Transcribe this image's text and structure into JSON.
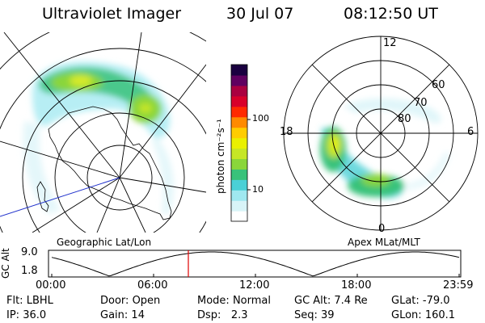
{
  "header": {
    "instrument": "Ultraviolet Imager",
    "date": "30 Jul 07",
    "time": "08:12:50 UT"
  },
  "colorbar": {
    "label": "photon cm⁻²s⁻¹",
    "ticks": [
      "100",
      "10"
    ],
    "colors": [
      "#ffffff",
      "#d8f4f8",
      "#9fe8f0",
      "#4ad0d6",
      "#38c27a",
      "#8ad63a",
      "#c6e626",
      "#eaf000",
      "#ffcc00",
      "#ff8a00",
      "#ff2a00",
      "#d8002a",
      "#aa0040",
      "#600060",
      "#1a0040"
    ]
  },
  "left_panel": {
    "label": "Geographic Lat/Lon"
  },
  "right_panel": {
    "label": "Apex  MLat/MLT",
    "mlt_labels": {
      "top": "12",
      "left": "18",
      "right": "6",
      "bottom": "0"
    },
    "lat_labels": [
      "60",
      "70",
      "80"
    ]
  },
  "altitude_plot": {
    "ylabel": "GC Alt",
    "yticks": [
      "9.0",
      "1.8"
    ],
    "xticks": [
      "00:00",
      "06:00",
      "12:00",
      "18:00",
      "23:59"
    ],
    "marker_color": "#e00000"
  },
  "info": {
    "row1": [
      {
        "k": "Flt:",
        "v": "LBHL"
      },
      {
        "k": "Door:",
        "v": "Open"
      },
      {
        "k": "Mode:",
        "v": "Normal"
      },
      {
        "k": "GC Alt:",
        "v": "7.4 Re"
      },
      {
        "k": "GLat:",
        "v": "-79.0"
      }
    ],
    "row2": [
      {
        "k": "IP:",
        "v": "36.0"
      },
      {
        "k": "Gain:",
        "v": "14"
      },
      {
        "k": "Dsp:",
        "v": "2.3"
      },
      {
        "k": "Seq:",
        "v": "39"
      },
      {
        "k": "GLon:",
        "v": "160.1"
      }
    ]
  }
}
